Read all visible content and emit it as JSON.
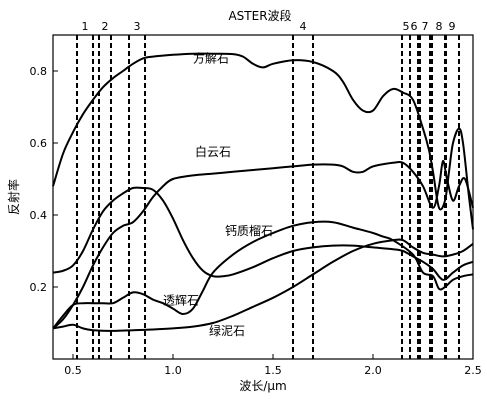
{
  "chart_data": {
    "type": "line",
    "title": "ASTER波段",
    "xlabel": "波长/μm",
    "ylabel": "反射率",
    "xlim": [
      0.4,
      2.5
    ],
    "ylim": [
      0.0,
      0.9
    ],
    "xticks": [
      0.5,
      1.0,
      1.5,
      2.0,
      2.5
    ],
    "xtick_labels": [
      "0.5",
      "1.0",
      "1.5",
      "2.0",
      "2.5"
    ],
    "yticks": [
      0.2,
      0.4,
      0.6,
      0.8
    ],
    "ytick_labels": [
      "0.2",
      "0.4",
      "0.6",
      "0.8"
    ],
    "grid": false,
    "legend": "none",
    "bands": [
      {
        "label": "1",
        "lines": [
          0.52,
          0.6
        ]
      },
      {
        "label": "2",
        "lines": [
          0.63,
          0.69
        ]
      },
      {
        "label": "3",
        "lines": [
          0.78,
          0.86
        ]
      },
      {
        "label": "4",
        "lines": [
          1.6,
          1.7
        ]
      },
      {
        "label": "5",
        "lines": [
          2.145,
          2.185
        ]
      },
      {
        "label": "6",
        "lines": [
          2.185,
          2.225
        ]
      },
      {
        "label": "7",
        "lines": [
          2.235,
          2.285
        ]
      },
      {
        "label": "8",
        "lines": [
          2.295,
          2.365
        ]
      },
      {
        "label": "9",
        "lines": [
          2.36,
          2.43
        ]
      }
    ],
    "series": [
      {
        "name": "方解石",
        "label_at": [
          1.1,
          0.835
        ],
        "points": [
          [
            0.4,
            0.48
          ],
          [
            0.45,
            0.57
          ],
          [
            0.5,
            0.63
          ],
          [
            0.55,
            0.68
          ],
          [
            0.6,
            0.72
          ],
          [
            0.65,
            0.755
          ],
          [
            0.7,
            0.78
          ],
          [
            0.75,
            0.8
          ],
          [
            0.8,
            0.82
          ],
          [
            0.85,
            0.835
          ],
          [
            0.9,
            0.84
          ],
          [
            1.0,
            0.845
          ],
          [
            1.1,
            0.848
          ],
          [
            1.2,
            0.848
          ],
          [
            1.3,
            0.847
          ],
          [
            1.35,
            0.84
          ],
          [
            1.4,
            0.82
          ],
          [
            1.45,
            0.81
          ],
          [
            1.5,
            0.82
          ],
          [
            1.6,
            0.83
          ],
          [
            1.7,
            0.825
          ],
          [
            1.8,
            0.8
          ],
          [
            1.85,
            0.77
          ],
          [
            1.9,
            0.72
          ],
          [
            1.95,
            0.69
          ],
          [
            2.0,
            0.69
          ],
          [
            2.05,
            0.73
          ],
          [
            2.1,
            0.75
          ],
          [
            2.15,
            0.74
          ],
          [
            2.2,
            0.72
          ],
          [
            2.25,
            0.64
          ],
          [
            2.28,
            0.58
          ],
          [
            2.3,
            0.52
          ],
          [
            2.33,
            0.42
          ],
          [
            2.36,
            0.44
          ],
          [
            2.38,
            0.52
          ],
          [
            2.4,
            0.6
          ],
          [
            2.43,
            0.64
          ],
          [
            2.45,
            0.6
          ],
          [
            2.48,
            0.45
          ],
          [
            2.5,
            0.36
          ]
        ]
      },
      {
        "name": "白云石",
        "label_at": [
          1.11,
          0.575
        ],
        "points": [
          [
            0.4,
            0.085
          ],
          [
            0.45,
            0.11
          ],
          [
            0.5,
            0.15
          ],
          [
            0.55,
            0.2
          ],
          [
            0.6,
            0.26
          ],
          [
            0.65,
            0.31
          ],
          [
            0.7,
            0.35
          ],
          [
            0.75,
            0.37
          ],
          [
            0.8,
            0.38
          ],
          [
            0.85,
            0.41
          ],
          [
            0.9,
            0.45
          ],
          [
            0.95,
            0.48
          ],
          [
            1.0,
            0.5
          ],
          [
            1.1,
            0.51
          ],
          [
            1.2,
            0.515
          ],
          [
            1.3,
            0.52
          ],
          [
            1.4,
            0.525
          ],
          [
            1.5,
            0.53
          ],
          [
            1.6,
            0.535
          ],
          [
            1.7,
            0.54
          ],
          [
            1.8,
            0.54
          ],
          [
            1.85,
            0.535
          ],
          [
            1.9,
            0.52
          ],
          [
            1.95,
            0.52
          ],
          [
            2.0,
            0.535
          ],
          [
            2.1,
            0.545
          ],
          [
            2.15,
            0.545
          ],
          [
            2.2,
            0.52
          ],
          [
            2.25,
            0.48
          ],
          [
            2.3,
            0.42
          ],
          [
            2.33,
            0.48
          ],
          [
            2.35,
            0.55
          ],
          [
            2.37,
            0.5
          ],
          [
            2.4,
            0.44
          ],
          [
            2.43,
            0.48
          ],
          [
            2.46,
            0.5
          ],
          [
            2.5,
            0.42
          ]
        ]
      },
      {
        "name": "钙质榴石",
        "label_at": [
          1.26,
          0.355
        ],
        "points": [
          [
            0.4,
            0.24
          ],
          [
            0.45,
            0.245
          ],
          [
            0.5,
            0.26
          ],
          [
            0.55,
            0.3
          ],
          [
            0.6,
            0.36
          ],
          [
            0.65,
            0.41
          ],
          [
            0.7,
            0.44
          ],
          [
            0.75,
            0.46
          ],
          [
            0.8,
            0.475
          ],
          [
            0.85,
            0.475
          ],
          [
            0.9,
            0.47
          ],
          [
            0.95,
            0.44
          ],
          [
            1.0,
            0.39
          ],
          [
            1.05,
            0.33
          ],
          [
            1.1,
            0.28
          ],
          [
            1.15,
            0.245
          ],
          [
            1.2,
            0.23
          ],
          [
            1.25,
            0.23
          ],
          [
            1.3,
            0.235
          ],
          [
            1.4,
            0.255
          ],
          [
            1.5,
            0.28
          ],
          [
            1.6,
            0.3
          ],
          [
            1.7,
            0.31
          ],
          [
            1.8,
            0.315
          ],
          [
            1.9,
            0.315
          ],
          [
            2.0,
            0.31
          ],
          [
            2.1,
            0.305
          ],
          [
            2.15,
            0.3
          ],
          [
            2.2,
            0.285
          ],
          [
            2.25,
            0.27
          ],
          [
            2.3,
            0.25
          ],
          [
            2.35,
            0.22
          ],
          [
            2.4,
            0.24
          ],
          [
            2.45,
            0.26
          ],
          [
            2.5,
            0.27
          ]
        ]
      },
      {
        "name": "透辉石",
        "label_at": [
          0.95,
          0.162
        ],
        "points": [
          [
            0.4,
            0.085
          ],
          [
            0.45,
            0.12
          ],
          [
            0.5,
            0.15
          ],
          [
            0.55,
            0.155
          ],
          [
            0.6,
            0.155
          ],
          [
            0.65,
            0.155
          ],
          [
            0.7,
            0.155
          ],
          [
            0.75,
            0.17
          ],
          [
            0.8,
            0.185
          ],
          [
            0.85,
            0.18
          ],
          [
            0.9,
            0.165
          ],
          [
            0.95,
            0.155
          ],
          [
            1.0,
            0.14
          ],
          [
            1.05,
            0.125
          ],
          [
            1.1,
            0.14
          ],
          [
            1.15,
            0.19
          ],
          [
            1.2,
            0.24
          ],
          [
            1.3,
            0.29
          ],
          [
            1.4,
            0.325
          ],
          [
            1.5,
            0.35
          ],
          [
            1.6,
            0.37
          ],
          [
            1.7,
            0.38
          ],
          [
            1.8,
            0.38
          ],
          [
            1.9,
            0.365
          ],
          [
            2.0,
            0.35
          ],
          [
            2.05,
            0.34
          ],
          [
            2.1,
            0.33
          ],
          [
            2.2,
            0.29
          ],
          [
            2.25,
            0.24
          ],
          [
            2.3,
            0.23
          ],
          [
            2.33,
            0.195
          ],
          [
            2.36,
            0.2
          ],
          [
            2.4,
            0.22
          ],
          [
            2.45,
            0.23
          ],
          [
            2.5,
            0.235
          ]
        ]
      },
      {
        "name": "绿泥石",
        "label_at": [
          1.18,
          0.078
        ],
        "points": [
          [
            0.4,
            0.085
          ],
          [
            0.45,
            0.09
          ],
          [
            0.5,
            0.095
          ],
          [
            0.55,
            0.085
          ],
          [
            0.6,
            0.08
          ],
          [
            0.7,
            0.078
          ],
          [
            0.8,
            0.08
          ],
          [
            0.9,
            0.082
          ],
          [
            1.0,
            0.085
          ],
          [
            1.1,
            0.09
          ],
          [
            1.2,
            0.1
          ],
          [
            1.3,
            0.12
          ],
          [
            1.4,
            0.145
          ],
          [
            1.5,
            0.17
          ],
          [
            1.6,
            0.2
          ],
          [
            1.7,
            0.235
          ],
          [
            1.8,
            0.27
          ],
          [
            1.9,
            0.3
          ],
          [
            2.0,
            0.32
          ],
          [
            2.1,
            0.33
          ],
          [
            2.15,
            0.33
          ],
          [
            2.2,
            0.31
          ],
          [
            2.25,
            0.295
          ],
          [
            2.3,
            0.29
          ],
          [
            2.35,
            0.285
          ],
          [
            2.4,
            0.29
          ],
          [
            2.45,
            0.3
          ],
          [
            2.5,
            0.32
          ]
        ]
      }
    ]
  }
}
